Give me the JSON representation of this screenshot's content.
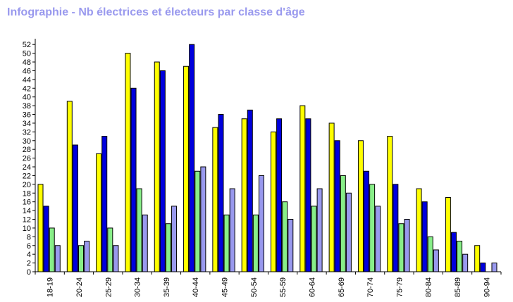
{
  "chart_data": {
    "type": "bar",
    "title": "Infographie - Nb électrices et électeurs par classe d'âge",
    "xlabel": "",
    "ylabel": "",
    "ylim": [
      0,
      53
    ],
    "yticks": [
      0,
      2,
      4,
      6,
      8,
      10,
      12,
      14,
      16,
      18,
      20,
      22,
      24,
      26,
      28,
      30,
      32,
      34,
      36,
      38,
      40,
      42,
      44,
      46,
      48,
      50,
      52
    ],
    "categories": [
      "18-19",
      "20-24",
      "25-29",
      "30-34",
      "35-39",
      "40-44",
      "45-49",
      "50-54",
      "55-59",
      "60-64",
      "65-69",
      "70-74",
      "75-79",
      "80-84",
      "85-89",
      "90-94"
    ],
    "grid": false,
    "legend": "none",
    "series": [
      {
        "color": "#ffff00",
        "values": [
          20,
          39,
          27,
          50,
          48,
          47,
          33,
          35,
          32,
          38,
          34,
          30,
          31,
          19,
          17,
          6
        ]
      },
      {
        "color": "#0000dd",
        "values": [
          15,
          29,
          31,
          42,
          46,
          52,
          36,
          37,
          35,
          35,
          30,
          23,
          20,
          16,
          9,
          2
        ]
      },
      {
        "color": "#88ee88",
        "values": [
          10,
          6,
          10,
          19,
          11,
          23,
          13,
          13,
          16,
          15,
          22,
          20,
          11,
          8,
          7,
          0
        ]
      },
      {
        "color": "#9999ee",
        "values": [
          6,
          7,
          6,
          13,
          15,
          24,
          19,
          22,
          12,
          19,
          18,
          15,
          12,
          5,
          4,
          2
        ]
      }
    ]
  }
}
